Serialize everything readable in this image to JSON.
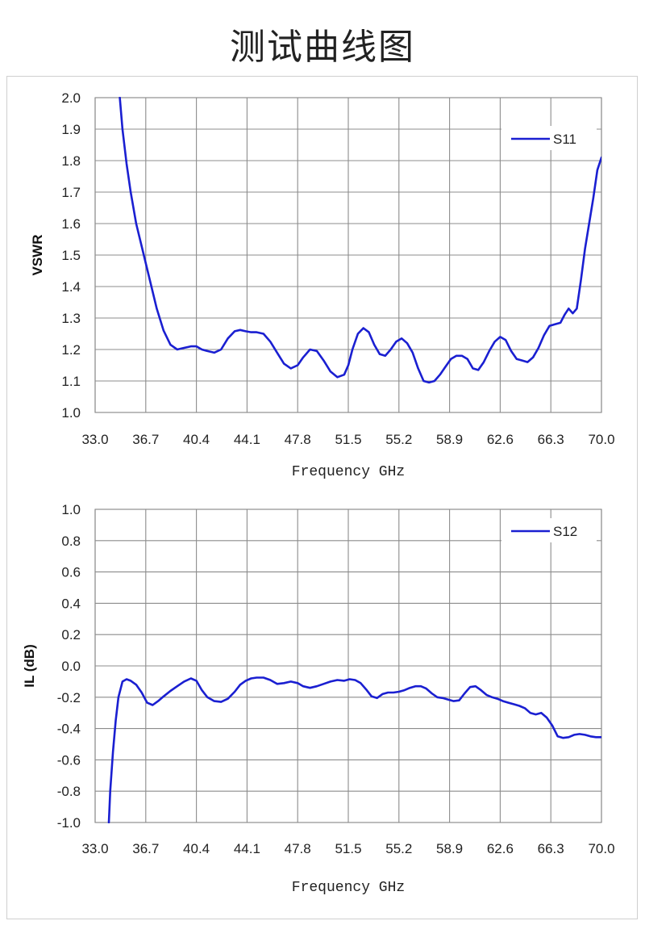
{
  "page": {
    "title": "测试曲线图"
  },
  "chart_data": [
    {
      "type": "line",
      "xlabel": "Frequency GHz",
      "ylabel": "VSWR",
      "xlim": [
        33.0,
        70.0
      ],
      "ylim": [
        1.0,
        2.0
      ],
      "x_ticks": [
        "33.0",
        "36.7",
        "40.4",
        "44.1",
        "47.8",
        "51.5",
        "55.2",
        "58.9",
        "62.6",
        "66.3",
        "70.0"
      ],
      "y_ticks": [
        "1.0",
        "1.1",
        "1.2",
        "1.3",
        "1.4",
        "1.5",
        "1.6",
        "1.7",
        "1.8",
        "1.9",
        "2.0"
      ],
      "grid": true,
      "legend": "top-right",
      "series": [
        {
          "name": "S11",
          "color": "#1a1fd1",
          "x": [
            34.8,
            35.0,
            35.3,
            35.6,
            36.0,
            36.5,
            37.0,
            37.5,
            38.0,
            38.5,
            39.0,
            39.5,
            40.0,
            40.4,
            40.8,
            41.2,
            41.7,
            42.2,
            42.7,
            43.2,
            43.6,
            44.0,
            44.4,
            44.8,
            45.3,
            45.8,
            46.3,
            46.8,
            47.3,
            47.8,
            48.2,
            48.7,
            49.2,
            49.7,
            50.2,
            50.7,
            51.2,
            51.5,
            51.8,
            52.2,
            52.6,
            53.0,
            53.4,
            53.8,
            54.2,
            54.6,
            55.0,
            55.4,
            55.8,
            56.2,
            56.6,
            57.0,
            57.4,
            57.8,
            58.2,
            58.6,
            59.0,
            59.4,
            59.8,
            60.2,
            60.6,
            61.0,
            61.4,
            61.8,
            62.2,
            62.6,
            63.0,
            63.4,
            63.8,
            64.2,
            64.6,
            65.0,
            65.4,
            65.8,
            66.2,
            66.6,
            67.0,
            67.3,
            67.6,
            67.9,
            68.2,
            68.5,
            68.8,
            69.1,
            69.4,
            69.7,
            70.0
          ],
          "values": [
            2.0,
            1.9,
            1.79,
            1.7,
            1.6,
            1.51,
            1.42,
            1.33,
            1.26,
            1.215,
            1.2,
            1.205,
            1.21,
            1.21,
            1.2,
            1.195,
            1.19,
            1.2,
            1.235,
            1.258,
            1.262,
            1.258,
            1.255,
            1.255,
            1.25,
            1.225,
            1.19,
            1.155,
            1.14,
            1.15,
            1.175,
            1.2,
            1.195,
            1.165,
            1.13,
            1.112,
            1.12,
            1.15,
            1.2,
            1.25,
            1.268,
            1.255,
            1.215,
            1.185,
            1.18,
            1.2,
            1.225,
            1.235,
            1.22,
            1.19,
            1.14,
            1.1,
            1.095,
            1.1,
            1.12,
            1.145,
            1.17,
            1.18,
            1.18,
            1.17,
            1.14,
            1.135,
            1.16,
            1.195,
            1.225,
            1.24,
            1.23,
            1.195,
            1.17,
            1.165,
            1.16,
            1.175,
            1.205,
            1.245,
            1.275,
            1.28,
            1.285,
            1.31,
            1.33,
            1.315,
            1.33,
            1.42,
            1.52,
            1.6,
            1.68,
            1.77,
            1.81
          ]
        }
      ]
    },
    {
      "type": "line",
      "xlabel": "Frequency GHz",
      "ylabel": "IL (dB)",
      "xlim": [
        33.0,
        70.0
      ],
      "ylim": [
        -1.0,
        1.0
      ],
      "x_ticks": [
        "33.0",
        "36.7",
        "40.4",
        "44.1",
        "47.8",
        "51.5",
        "55.2",
        "58.9",
        "62.6",
        "66.3",
        "70.0"
      ],
      "y_ticks": [
        "-1.0",
        "-0.8",
        "-0.6",
        "-0.4",
        "-0.2",
        "0.0",
        "0.2",
        "0.4",
        "0.6",
        "0.8",
        "1.0"
      ],
      "grid": true,
      "legend": "top-right",
      "series": [
        {
          "name": "S12",
          "color": "#1a1fd1",
          "x": [
            34.0,
            34.1,
            34.3,
            34.5,
            34.7,
            35.0,
            35.3,
            35.6,
            36.0,
            36.4,
            36.8,
            37.2,
            37.6,
            38.0,
            38.5,
            39.0,
            39.5,
            40.0,
            40.4,
            40.8,
            41.2,
            41.7,
            42.2,
            42.7,
            43.2,
            43.6,
            44.0,
            44.4,
            44.8,
            45.3,
            45.8,
            46.3,
            46.8,
            47.3,
            47.8,
            48.2,
            48.7,
            49.2,
            49.7,
            50.2,
            50.7,
            51.2,
            51.6,
            52.0,
            52.4,
            52.8,
            53.2,
            53.6,
            54.0,
            54.4,
            54.8,
            55.2,
            55.6,
            56.0,
            56.4,
            56.8,
            57.2,
            57.6,
            58.0,
            58.4,
            58.8,
            59.2,
            59.6,
            60.0,
            60.4,
            60.8,
            61.2,
            61.6,
            62.0,
            62.4,
            62.8,
            63.2,
            63.6,
            64.0,
            64.4,
            64.8,
            65.2,
            65.6,
            66.0,
            66.4,
            66.8,
            67.2,
            67.6,
            68.0,
            68.4,
            68.8,
            69.2,
            69.6,
            70.0
          ],
          "values": [
            -1.0,
            -0.8,
            -0.55,
            -0.35,
            -0.2,
            -0.1,
            -0.085,
            -0.095,
            -0.12,
            -0.17,
            -0.235,
            -0.25,
            -0.225,
            -0.195,
            -0.16,
            -0.13,
            -0.1,
            -0.08,
            -0.095,
            -0.155,
            -0.2,
            -0.225,
            -0.23,
            -0.21,
            -0.165,
            -0.12,
            -0.095,
            -0.08,
            -0.075,
            -0.075,
            -0.09,
            -0.115,
            -0.11,
            -0.1,
            -0.11,
            -0.13,
            -0.14,
            -0.13,
            -0.115,
            -0.1,
            -0.09,
            -0.095,
            -0.085,
            -0.09,
            -0.11,
            -0.15,
            -0.195,
            -0.205,
            -0.18,
            -0.17,
            -0.17,
            -0.165,
            -0.155,
            -0.14,
            -0.13,
            -0.13,
            -0.145,
            -0.175,
            -0.2,
            -0.205,
            -0.215,
            -0.225,
            -0.22,
            -0.175,
            -0.135,
            -0.13,
            -0.155,
            -0.185,
            -0.2,
            -0.21,
            -0.225,
            -0.235,
            -0.245,
            -0.255,
            -0.27,
            -0.3,
            -0.31,
            -0.3,
            -0.33,
            -0.38,
            -0.45,
            -0.46,
            -0.455,
            -0.44,
            -0.435,
            -0.44,
            -0.45,
            -0.455,
            -0.455
          ]
        }
      ]
    }
  ]
}
